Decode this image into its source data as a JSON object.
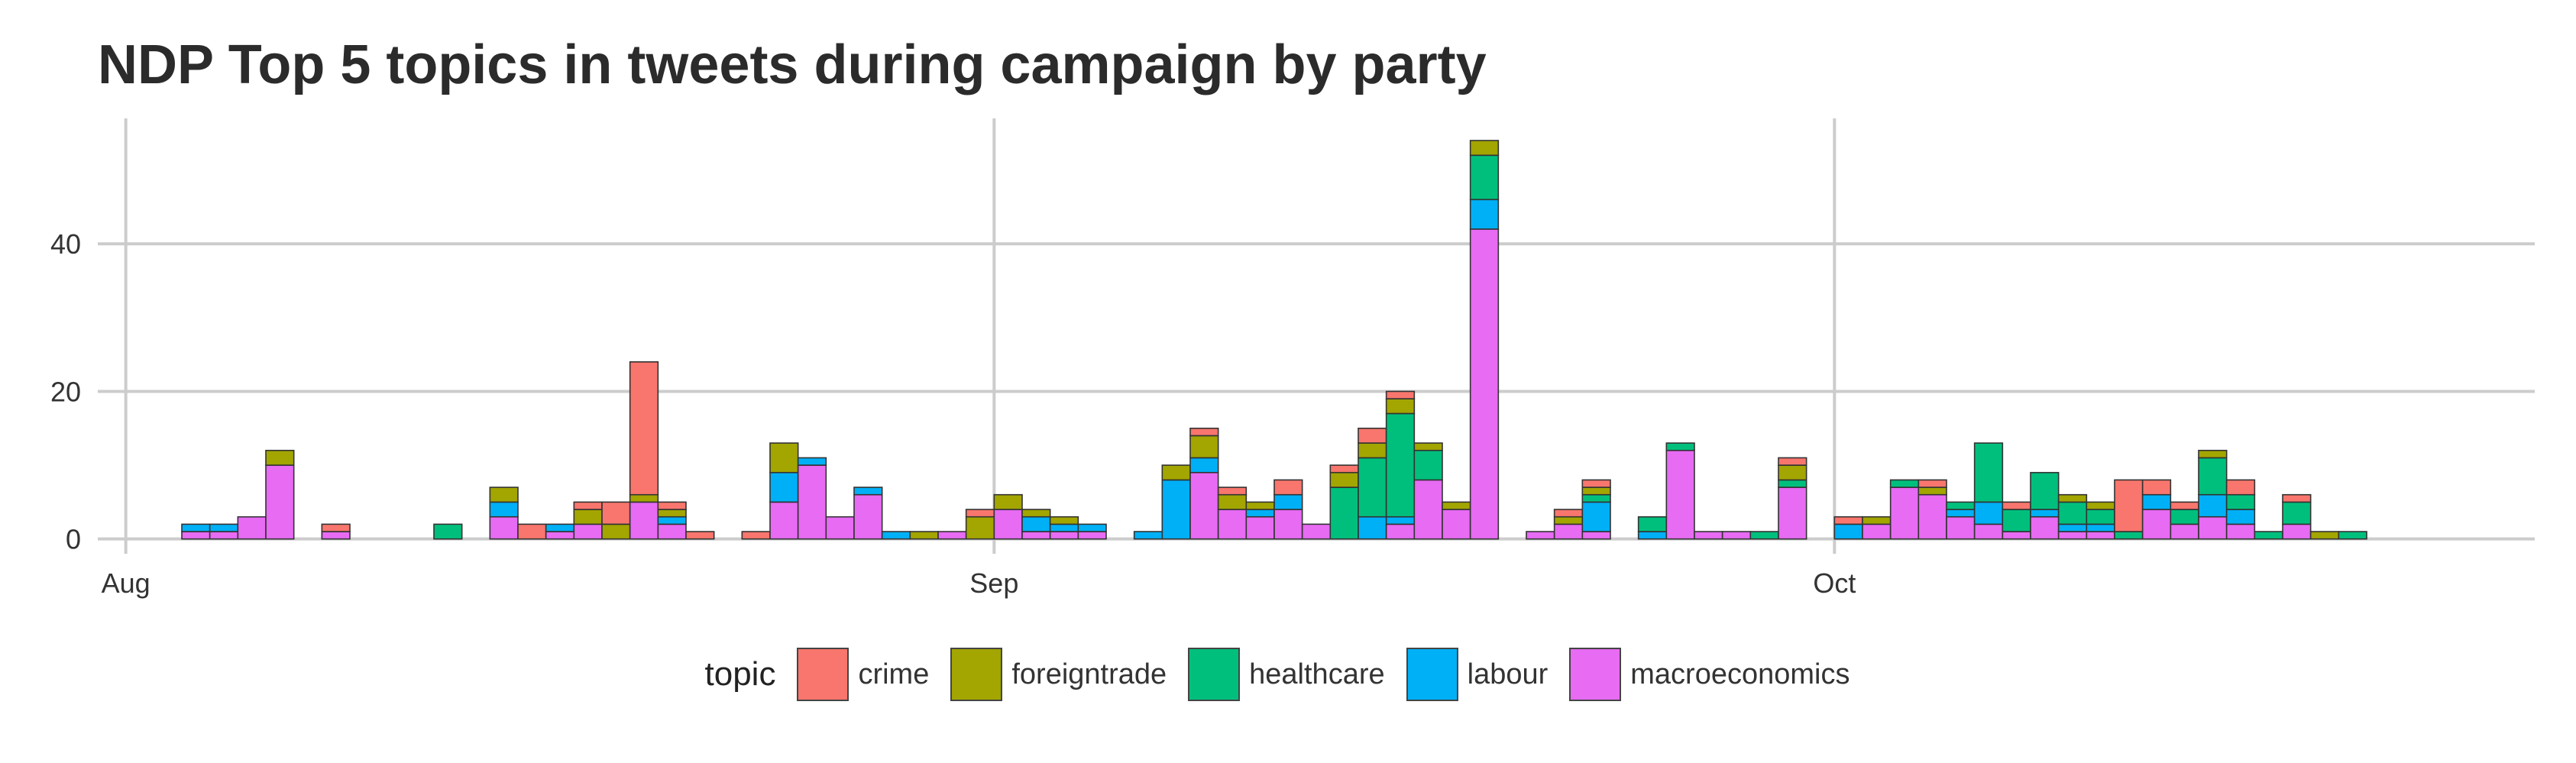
{
  "chart_data": {
    "type": "bar",
    "stacked": true,
    "title": "NDP Top 5 topics in tweets during campaign by party",
    "xlabel": "",
    "ylabel": "",
    "x_axis": {
      "type": "date",
      "range": [
        "2015-07-31",
        "2015-10-26"
      ],
      "ticks": [
        "Aug",
        "Sep",
        "Oct"
      ],
      "tick_dates": [
        "2015-08-01",
        "2015-09-01",
        "2015-10-01"
      ]
    },
    "y_axis": {
      "range": [
        -2,
        57
      ],
      "ticks": [
        0,
        20,
        40
      ]
    },
    "grid": true,
    "legend": {
      "title": "topic",
      "position": "bottom"
    },
    "series": [
      {
        "name": "crime",
        "color": "#F8766D"
      },
      {
        "name": "foreigntrade",
        "color": "#A3A500"
      },
      {
        "name": "healthcare",
        "color": "#00BF7D"
      },
      {
        "name": "labour",
        "color": "#00B0F6"
      },
      {
        "name": "macroeconomics",
        "color": "#E76BF3"
      }
    ],
    "stack_order": [
      "macroeconomics",
      "labour",
      "healthcare",
      "foreigntrade",
      "crime"
    ],
    "bars": [
      {
        "date": "2015-08-03",
        "values": {
          "macroeconomics": 1,
          "labour": 1
        }
      },
      {
        "date": "2015-08-04",
        "values": {
          "macroeconomics": 1,
          "labour": 1
        }
      },
      {
        "date": "2015-08-05",
        "values": {
          "macroeconomics": 3
        }
      },
      {
        "date": "2015-08-06",
        "values": {
          "macroeconomics": 10,
          "foreigntrade": 2
        }
      },
      {
        "date": "2015-08-08",
        "values": {
          "macroeconomics": 1,
          "crime": 1
        }
      },
      {
        "date": "2015-08-12",
        "values": {
          "healthcare": 2
        }
      },
      {
        "date": "2015-08-14",
        "values": {
          "macroeconomics": 3,
          "labour": 2,
          "foreigntrade": 2
        }
      },
      {
        "date": "2015-08-15",
        "values": {
          "crime": 2
        }
      },
      {
        "date": "2015-08-16",
        "values": {
          "macroeconomics": 1,
          "labour": 1
        }
      },
      {
        "date": "2015-08-17",
        "values": {
          "macroeconomics": 2,
          "foreigntrade": 2,
          "crime": 1
        }
      },
      {
        "date": "2015-08-18",
        "values": {
          "foreigntrade": 2,
          "crime": 3
        }
      },
      {
        "date": "2015-08-19",
        "values": {
          "macroeconomics": 5,
          "foreigntrade": 1,
          "crime": 18
        }
      },
      {
        "date": "2015-08-20",
        "values": {
          "macroeconomics": 2,
          "labour": 1,
          "foreigntrade": 1,
          "crime": 1
        }
      },
      {
        "date": "2015-08-21",
        "values": {
          "crime": 1
        }
      },
      {
        "date": "2015-08-23",
        "values": {
          "crime": 1
        }
      },
      {
        "date": "2015-08-24",
        "values": {
          "macroeconomics": 5,
          "labour": 4,
          "foreigntrade": 4
        }
      },
      {
        "date": "2015-08-25",
        "values": {
          "macroeconomics": 10,
          "labour": 1
        }
      },
      {
        "date": "2015-08-26",
        "values": {
          "macroeconomics": 3
        }
      },
      {
        "date": "2015-08-27",
        "values": {
          "macroeconomics": 6,
          "labour": 1
        }
      },
      {
        "date": "2015-08-28",
        "values": {
          "labour": 1
        }
      },
      {
        "date": "2015-08-29",
        "values": {
          "foreigntrade": 1
        }
      },
      {
        "date": "2015-08-30",
        "values": {
          "macroeconomics": 1
        }
      },
      {
        "date": "2015-08-31",
        "values": {
          "foreigntrade": 3,
          "crime": 1
        }
      },
      {
        "date": "2015-09-01",
        "values": {
          "macroeconomics": 4,
          "foreigntrade": 2
        }
      },
      {
        "date": "2015-09-02",
        "values": {
          "macroeconomics": 1,
          "labour": 2,
          "foreigntrade": 1
        }
      },
      {
        "date": "2015-09-03",
        "values": {
          "macroeconomics": 1,
          "labour": 1,
          "foreigntrade": 1
        }
      },
      {
        "date": "2015-09-04",
        "values": {
          "macroeconomics": 1,
          "labour": 1
        }
      },
      {
        "date": "2015-09-06",
        "values": {
          "labour": 1
        }
      },
      {
        "date": "2015-09-07",
        "values": {
          "labour": 8,
          "foreigntrade": 2
        }
      },
      {
        "date": "2015-09-08",
        "values": {
          "macroeconomics": 9,
          "labour": 2,
          "foreigntrade": 3,
          "crime": 1
        }
      },
      {
        "date": "2015-09-09",
        "values": {
          "macroeconomics": 4,
          "foreigntrade": 2,
          "crime": 1
        }
      },
      {
        "date": "2015-09-10",
        "values": {
          "macroeconomics": 3,
          "labour": 1,
          "foreigntrade": 1
        }
      },
      {
        "date": "2015-09-11",
        "values": {
          "macroeconomics": 4,
          "labour": 2,
          "crime": 2
        }
      },
      {
        "date": "2015-09-12",
        "values": {
          "macroeconomics": 2
        }
      },
      {
        "date": "2015-09-13",
        "values": {
          "healthcare": 7,
          "foreigntrade": 2,
          "crime": 1
        }
      },
      {
        "date": "2015-09-14",
        "values": {
          "labour": 3,
          "healthcare": 8,
          "foreigntrade": 2,
          "crime": 2
        }
      },
      {
        "date": "2015-09-15",
        "values": {
          "macroeconomics": 2,
          "labour": 1,
          "healthcare": 14,
          "foreigntrade": 2,
          "crime": 1
        }
      },
      {
        "date": "2015-09-16",
        "values": {
          "macroeconomics": 8,
          "healthcare": 4,
          "foreigntrade": 1
        }
      },
      {
        "date": "2015-09-17",
        "values": {
          "macroeconomics": 4,
          "foreigntrade": 1
        }
      },
      {
        "date": "2015-09-18",
        "values": {
          "macroeconomics": 42,
          "labour": 4,
          "healthcare": 6,
          "foreigntrade": 2
        }
      },
      {
        "date": "2015-09-20",
        "values": {
          "macroeconomics": 1
        }
      },
      {
        "date": "2015-09-21",
        "values": {
          "macroeconomics": 2,
          "foreigntrade": 1,
          "crime": 1
        }
      },
      {
        "date": "2015-09-22",
        "values": {
          "macroeconomics": 1,
          "labour": 4,
          "healthcare": 1,
          "foreigntrade": 1,
          "crime": 1
        }
      },
      {
        "date": "2015-09-24",
        "values": {
          "labour": 1,
          "healthcare": 2
        }
      },
      {
        "date": "2015-09-25",
        "values": {
          "macroeconomics": 12,
          "healthcare": 1
        }
      },
      {
        "date": "2015-09-26",
        "values": {
          "macroeconomics": 1
        }
      },
      {
        "date": "2015-09-27",
        "values": {
          "macroeconomics": 1
        }
      },
      {
        "date": "2015-09-28",
        "values": {
          "healthcare": 1
        }
      },
      {
        "date": "2015-09-29",
        "values": {
          "macroeconomics": 7,
          "healthcare": 1,
          "foreigntrade": 2,
          "crime": 1
        }
      },
      {
        "date": "2015-10-01",
        "values": {
          "labour": 2,
          "crime": 1
        }
      },
      {
        "date": "2015-10-02",
        "values": {
          "macroeconomics": 2,
          "foreigntrade": 1
        }
      },
      {
        "date": "2015-10-03",
        "values": {
          "macroeconomics": 7,
          "healthcare": 1
        }
      },
      {
        "date": "2015-10-04",
        "values": {
          "macroeconomics": 6,
          "foreigntrade": 1,
          "crime": 1
        }
      },
      {
        "date": "2015-10-05",
        "values": {
          "macroeconomics": 3,
          "labour": 1,
          "healthcare": 1
        }
      },
      {
        "date": "2015-10-06",
        "values": {
          "macroeconomics": 2,
          "labour": 3,
          "healthcare": 8
        }
      },
      {
        "date": "2015-10-07",
        "values": {
          "macroeconomics": 1,
          "healthcare": 3,
          "crime": 1
        }
      },
      {
        "date": "2015-10-08",
        "values": {
          "macroeconomics": 3,
          "labour": 1,
          "healthcare": 5
        }
      },
      {
        "date": "2015-10-09",
        "values": {
          "macroeconomics": 1,
          "labour": 1,
          "healthcare": 3,
          "foreigntrade": 1
        }
      },
      {
        "date": "2015-10-10",
        "values": {
          "macroeconomics": 1,
          "labour": 1,
          "healthcare": 2,
          "foreigntrade": 1
        }
      },
      {
        "date": "2015-10-11",
        "values": {
          "healthcare": 1,
          "crime": 7
        }
      },
      {
        "date": "2015-10-12",
        "values": {
          "macroeconomics": 4,
          "labour": 2,
          "crime": 2
        }
      },
      {
        "date": "2015-10-13",
        "values": {
          "macroeconomics": 2,
          "healthcare": 2,
          "crime": 1
        }
      },
      {
        "date": "2015-10-14",
        "values": {
          "macroeconomics": 3,
          "labour": 3,
          "healthcare": 5,
          "foreigntrade": 1
        }
      },
      {
        "date": "2015-10-15",
        "values": {
          "macroeconomics": 2,
          "labour": 2,
          "healthcare": 2,
          "crime": 2
        }
      },
      {
        "date": "2015-10-16",
        "values": {
          "healthcare": 1
        }
      },
      {
        "date": "2015-10-17",
        "values": {
          "macroeconomics": 2,
          "healthcare": 3,
          "crime": 1
        }
      },
      {
        "date": "2015-10-18",
        "values": {
          "foreigntrade": 1
        }
      },
      {
        "date": "2015-10-19",
        "values": {
          "healthcare": 1
        }
      }
    ]
  }
}
